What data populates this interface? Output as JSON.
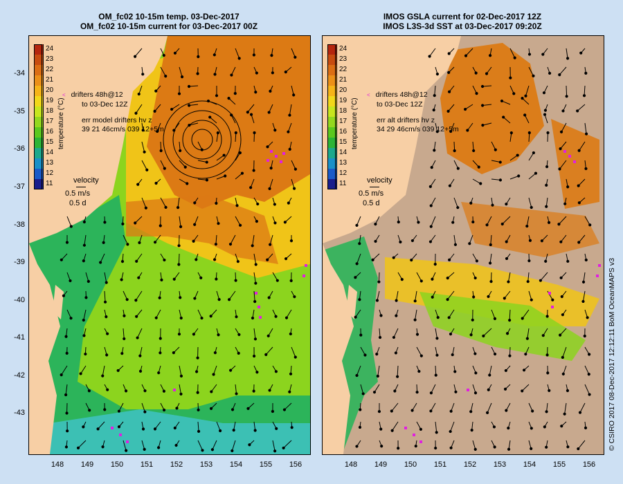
{
  "left_panel": {
    "title_line1": "OM_fc02 10-15m temp. 03-Dec-2017",
    "title_line2": "OM_fc02 10-15m current for 03-Dec-2017 00Z",
    "drifters_line1": "drifters 48h@12",
    "drifters_line2": "to 03-Dec 12Z",
    "err_line1": "err model drifters hv z",
    "err_line2": "39 21 46cm/s 039 12+5m"
  },
  "right_panel": {
    "title_line1": "IMOS GSLA current for 02-Dec-2017 12Z",
    "title_line2": "IMOS L3S-3d SST at 03-Dec-2017 09:20Z",
    "drifters_line1": "drifters 48h@12",
    "drifters_line2": "to 03-Dec 12Z",
    "err_line1": "err alt drifters hv z",
    "err_line2": "34 29 46cm/s 039 12+5m"
  },
  "velocity_key": {
    "label": "velocity",
    "speed": "0.5 m/s",
    "duration": "0.5 d"
  },
  "colorbar": {
    "title": "temperature (°C)",
    "values": [
      "24",
      "23",
      "22",
      "21",
      "20",
      "19",
      "18",
      "17",
      "16",
      "15",
      "14",
      "13",
      "12",
      "11"
    ],
    "colors": [
      "#b5260e",
      "#c84c10",
      "#dc6e14",
      "#ec9018",
      "#f6b418",
      "#f2d81a",
      "#c8e61e",
      "#94d81e",
      "#5cc81e",
      "#2cb436",
      "#1ca88c",
      "#1a90c8",
      "#1a5ac8",
      "#1a1e8c"
    ]
  },
  "axes": {
    "lat_labels": [
      "-34",
      "-35",
      "-36",
      "-37",
      "-38",
      "-39",
      "-40",
      "-41",
      "-42",
      "-43"
    ],
    "lon_labels": [
      "148",
      "149",
      "150",
      "151",
      "152",
      "153",
      "154",
      "155",
      "156"
    ]
  },
  "map_colors": {
    "land": "#f7cfa5",
    "nodata": "#c8a98e",
    "warm": "#dc7a14",
    "mid": "#f0c418",
    "cool": "#8cd41e",
    "cold": "#2cb45a"
  },
  "credit": "© CSIRO 2017   08-Dec-2017 12:12:11 BoM OceanMAPS v3"
}
